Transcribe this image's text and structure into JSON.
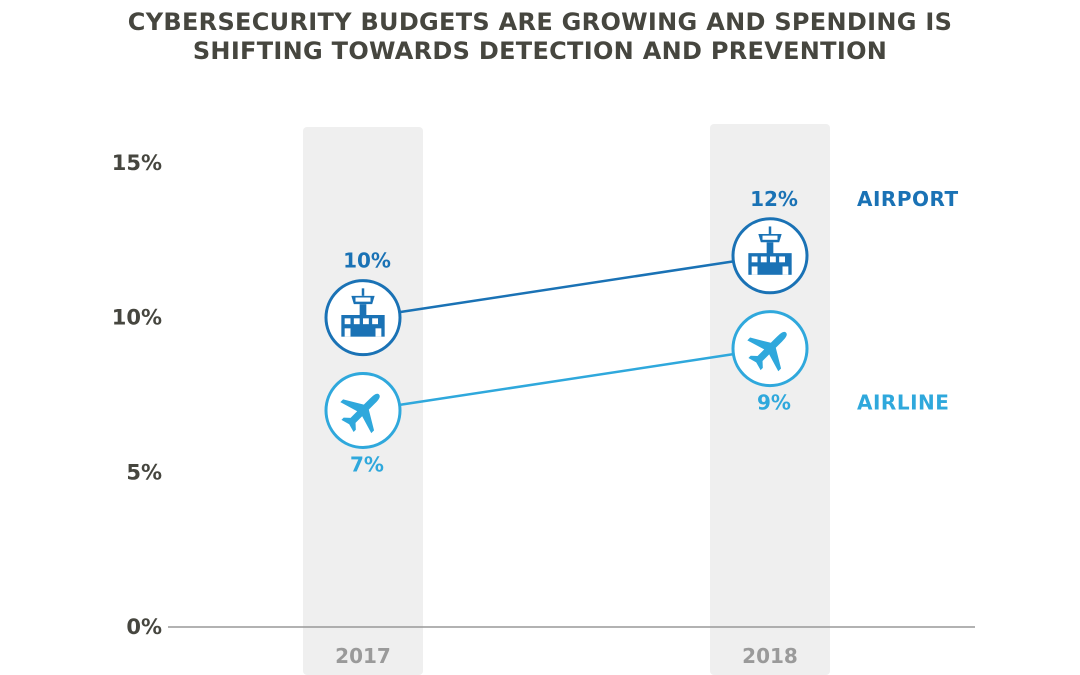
{
  "chart_data": {
    "type": "line",
    "title": "CYBERSECURITY BUDGETS ARE GROWING AND SPENDING IS SHIFTING TOWARDS DETECTION AND PREVENTION",
    "title_lines": [
      "CYBERSECURITY BUDGETS ARE GROWING AND SPENDING IS",
      "SHIFTING TOWARDS DETECTION AND PREVENTION"
    ],
    "categories": [
      "2017",
      "2018"
    ],
    "ylim": [
      0,
      15
    ],
    "yticks": [
      0,
      5,
      10,
      15
    ],
    "ytick_labels": [
      "0%",
      "5%",
      "10%",
      "15%"
    ],
    "grid": false,
    "legend": "right",
    "series": [
      {
        "name": "AIRPORT",
        "values": [
          10,
          12
        ],
        "labels": [
          "10%",
          "12%"
        ],
        "color": "#1a72b5",
        "icon": "airport-tower-icon"
      },
      {
        "name": "AIRLINE",
        "values": [
          7,
          9
        ],
        "labels": [
          "7%",
          "9%"
        ],
        "color": "#2fa8dc",
        "icon": "airplane-icon"
      }
    ]
  },
  "colors": {
    "text": "#46463f",
    "column_band": "#efefef",
    "axis": "#999999",
    "tick_label": "#9a9a9a"
  }
}
